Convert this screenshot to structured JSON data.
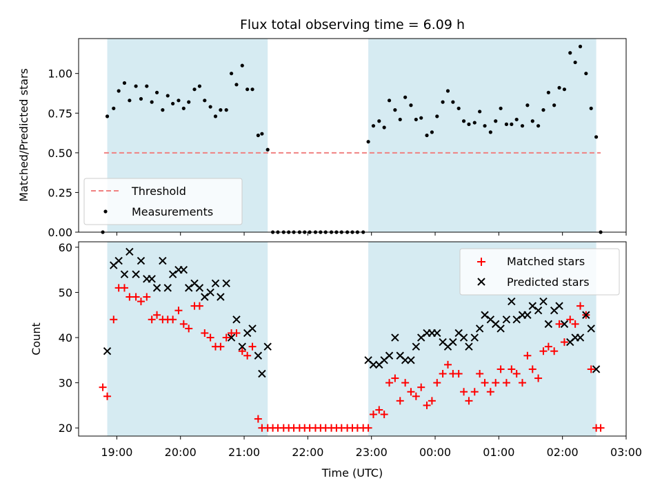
{
  "chart_data": [
    {
      "type": "scatter",
      "title": "Flux total observing time = 6.09 h",
      "xlabel": "",
      "ylabel": "Matched/Predicted stars",
      "ylim": [
        0,
        1.22
      ],
      "yticks": [
        "0.00",
        "0.25",
        "0.50",
        "0.75",
        "1.00"
      ],
      "x_axis": "time_of_day_utc",
      "xlim_hours": [
        18.4,
        27.0
      ],
      "shaded_intervals_hours": [
        [
          18.85,
          21.37
        ],
        [
          22.95,
          26.53
        ]
      ],
      "threshold": {
        "name": "Threshold",
        "value": 0.5,
        "x_range_hours": [
          18.8,
          26.6
        ],
        "color": "#f08080"
      },
      "legend": {
        "placement": "lower-left",
        "entries": [
          "Threshold",
          "Measurements"
        ]
      },
      "series": [
        {
          "name": "Measurements",
          "color": "#000000",
          "x_hours": [
            18.78,
            18.85,
            18.95,
            19.03,
            19.12,
            19.2,
            19.3,
            19.38,
            19.47,
            19.55,
            19.63,
            19.72,
            19.8,
            19.88,
            19.97,
            20.05,
            20.13,
            20.22,
            20.3,
            20.38,
            20.47,
            20.55,
            20.63,
            20.72,
            20.8,
            20.88,
            20.97,
            21.05,
            21.13,
            21.22,
            21.28,
            21.37,
            21.45,
            21.53,
            21.62,
            21.7,
            21.78,
            21.87,
            21.95,
            22.03,
            22.12,
            22.2,
            22.28,
            22.37,
            22.45,
            22.53,
            22.62,
            22.7,
            22.78,
            22.87,
            22.95,
            23.03,
            23.12,
            23.2,
            23.28,
            23.37,
            23.45,
            23.53,
            23.62,
            23.7,
            23.78,
            23.87,
            23.95,
            24.03,
            24.12,
            24.2,
            24.28,
            24.37,
            24.45,
            24.53,
            24.62,
            24.7,
            24.78,
            24.87,
            24.95,
            25.03,
            25.12,
            25.2,
            25.28,
            25.37,
            25.45,
            25.53,
            25.62,
            25.7,
            25.78,
            25.87,
            25.95,
            26.03,
            26.12,
            26.2,
            26.28,
            26.37,
            26.45,
            26.53,
            26.6
          ],
          "y": [
            0.0,
            0.73,
            0.78,
            0.89,
            0.94,
            0.83,
            0.92,
            0.84,
            0.92,
            0.82,
            0.88,
            0.77,
            0.86,
            0.81,
            0.83,
            0.78,
            0.82,
            0.9,
            0.92,
            0.83,
            0.79,
            0.73,
            0.77,
            0.77,
            1.0,
            0.93,
            1.05,
            0.9,
            0.9,
            0.61,
            0.62,
            0.52,
            0.0,
            0.0,
            0.0,
            0.0,
            0.0,
            0.0,
            0.0,
            0.0,
            0.0,
            0.0,
            0.0,
            0.0,
            0.0,
            0.0,
            0.0,
            0.0,
            0.0,
            0.0,
            0.57,
            0.67,
            0.7,
            0.66,
            0.83,
            0.77,
            0.71,
            0.85,
            0.8,
            0.71,
            0.72,
            0.61,
            0.63,
            0.73,
            0.82,
            0.89,
            0.82,
            0.78,
            0.7,
            0.68,
            0.69,
            0.76,
            0.67,
            0.63,
            0.7,
            0.78,
            0.68,
            0.68,
            0.71,
            0.67,
            0.8,
            0.7,
            0.67,
            0.77,
            0.88,
            0.8,
            0.91,
            0.9,
            1.13,
            1.07,
            1.17,
            1.0,
            0.78,
            0.6,
            0.0
          ]
        }
      ]
    },
    {
      "type": "scatter",
      "title": "",
      "xlabel": "Time (UTC)",
      "ylabel": "Count",
      "ylim": [
        18.2,
        61.2
      ],
      "yticks": [
        "20",
        "30",
        "40",
        "50",
        "60"
      ],
      "xticks": [
        "19:00",
        "20:00",
        "21:00",
        "22:00",
        "23:00",
        "00:00",
        "01:00",
        "02:00",
        "03:00"
      ],
      "xticks_hours": [
        19,
        20,
        21,
        22,
        23,
        24,
        25,
        26,
        27
      ],
      "x_axis": "time_of_day_utc",
      "xlim_hours": [
        18.4,
        27.0
      ],
      "shaded_intervals_hours": [
        [
          18.85,
          21.37
        ],
        [
          22.95,
          26.53
        ]
      ],
      "legend": {
        "placement": "upper-right",
        "entries": [
          "Matched stars",
          "Predicted stars"
        ]
      },
      "series": [
        {
          "name": "Matched stars",
          "marker": "plus",
          "color": "#ff0000",
          "x_hours": [
            18.78,
            18.85,
            18.95,
            19.03,
            19.12,
            19.2,
            19.3,
            19.38,
            19.47,
            19.55,
            19.63,
            19.72,
            19.8,
            19.88,
            19.97,
            20.05,
            20.13,
            20.22,
            20.3,
            20.38,
            20.47,
            20.55,
            20.63,
            20.72,
            20.8,
            20.88,
            20.97,
            21.05,
            21.13,
            21.22,
            21.28,
            21.37,
            21.45,
            21.53,
            21.62,
            21.7,
            21.78,
            21.87,
            21.95,
            22.03,
            22.12,
            22.2,
            22.28,
            22.37,
            22.45,
            22.53,
            22.62,
            22.7,
            22.78,
            22.87,
            22.95,
            23.03,
            23.12,
            23.2,
            23.28,
            23.37,
            23.45,
            23.53,
            23.62,
            23.7,
            23.78,
            23.87,
            23.95,
            24.03,
            24.12,
            24.2,
            24.28,
            24.37,
            24.45,
            24.53,
            24.62,
            24.7,
            24.78,
            24.87,
            24.95,
            25.03,
            25.12,
            25.2,
            25.28,
            25.37,
            25.45,
            25.53,
            25.62,
            25.7,
            25.78,
            25.87,
            25.95,
            26.03,
            26.12,
            26.2,
            26.28,
            26.37,
            26.45,
            26.53,
            26.6
          ],
          "y": [
            29,
            27,
            44,
            51,
            51,
            49,
            49,
            48,
            49,
            44,
            45,
            44,
            44,
            44,
            46,
            43,
            42,
            47,
            47,
            41,
            40,
            38,
            38,
            40,
            41,
            41,
            37,
            36,
            38,
            22,
            20,
            20,
            20,
            20,
            20,
            20,
            20,
            20,
            20,
            20,
            20,
            20,
            20,
            20,
            20,
            20,
            20,
            20,
            20,
            20,
            20,
            23,
            24,
            23,
            30,
            31,
            26,
            30,
            28,
            27,
            29,
            25,
            26,
            30,
            32,
            34,
            32,
            32,
            28,
            26,
            28,
            32,
            30,
            28,
            30,
            33,
            30,
            33,
            32,
            30,
            36,
            33,
            31,
            37,
            38,
            37,
            43,
            39,
            44,
            43,
            47,
            45,
            33,
            20,
            20
          ]
        },
        {
          "name": "Predicted stars",
          "marker": "x",
          "color": "#000000",
          "x_hours": [
            18.85,
            18.95,
            19.03,
            19.12,
            19.2,
            19.3,
            19.38,
            19.47,
            19.55,
            19.63,
            19.72,
            19.8,
            19.88,
            19.97,
            20.05,
            20.13,
            20.22,
            20.3,
            20.38,
            20.47,
            20.55,
            20.63,
            20.72,
            20.8,
            20.88,
            20.97,
            21.05,
            21.13,
            21.22,
            21.28,
            21.37,
            22.95,
            23.03,
            23.12,
            23.2,
            23.28,
            23.37,
            23.45,
            23.53,
            23.62,
            23.7,
            23.78,
            23.87,
            23.95,
            24.03,
            24.12,
            24.2,
            24.28,
            24.37,
            24.45,
            24.53,
            24.62,
            24.7,
            24.78,
            24.87,
            24.95,
            25.03,
            25.12,
            25.2,
            25.28,
            25.37,
            25.45,
            25.53,
            25.62,
            25.7,
            25.78,
            25.87,
            25.95,
            26.03,
            26.12,
            26.2,
            26.28,
            26.37,
            26.45,
            26.53
          ],
          "y": [
            37,
            56,
            57,
            54,
            59,
            54,
            57,
            53,
            53,
            51,
            57,
            51,
            54,
            55,
            55,
            51,
            52,
            51,
            49,
            50,
            52,
            49,
            52,
            40,
            44,
            38,
            41,
            42,
            36,
            32,
            38,
            35,
            34,
            34,
            35,
            36,
            40,
            36,
            35,
            35,
            38,
            40,
            41,
            41,
            41,
            39,
            38,
            39,
            41,
            40,
            38,
            40,
            42,
            45,
            44,
            43,
            42,
            44,
            48,
            44,
            45,
            45,
            47,
            46,
            48,
            43,
            46,
            47,
            43,
            39,
            40,
            40,
            45,
            42,
            33
          ]
        }
      ]
    }
  ]
}
